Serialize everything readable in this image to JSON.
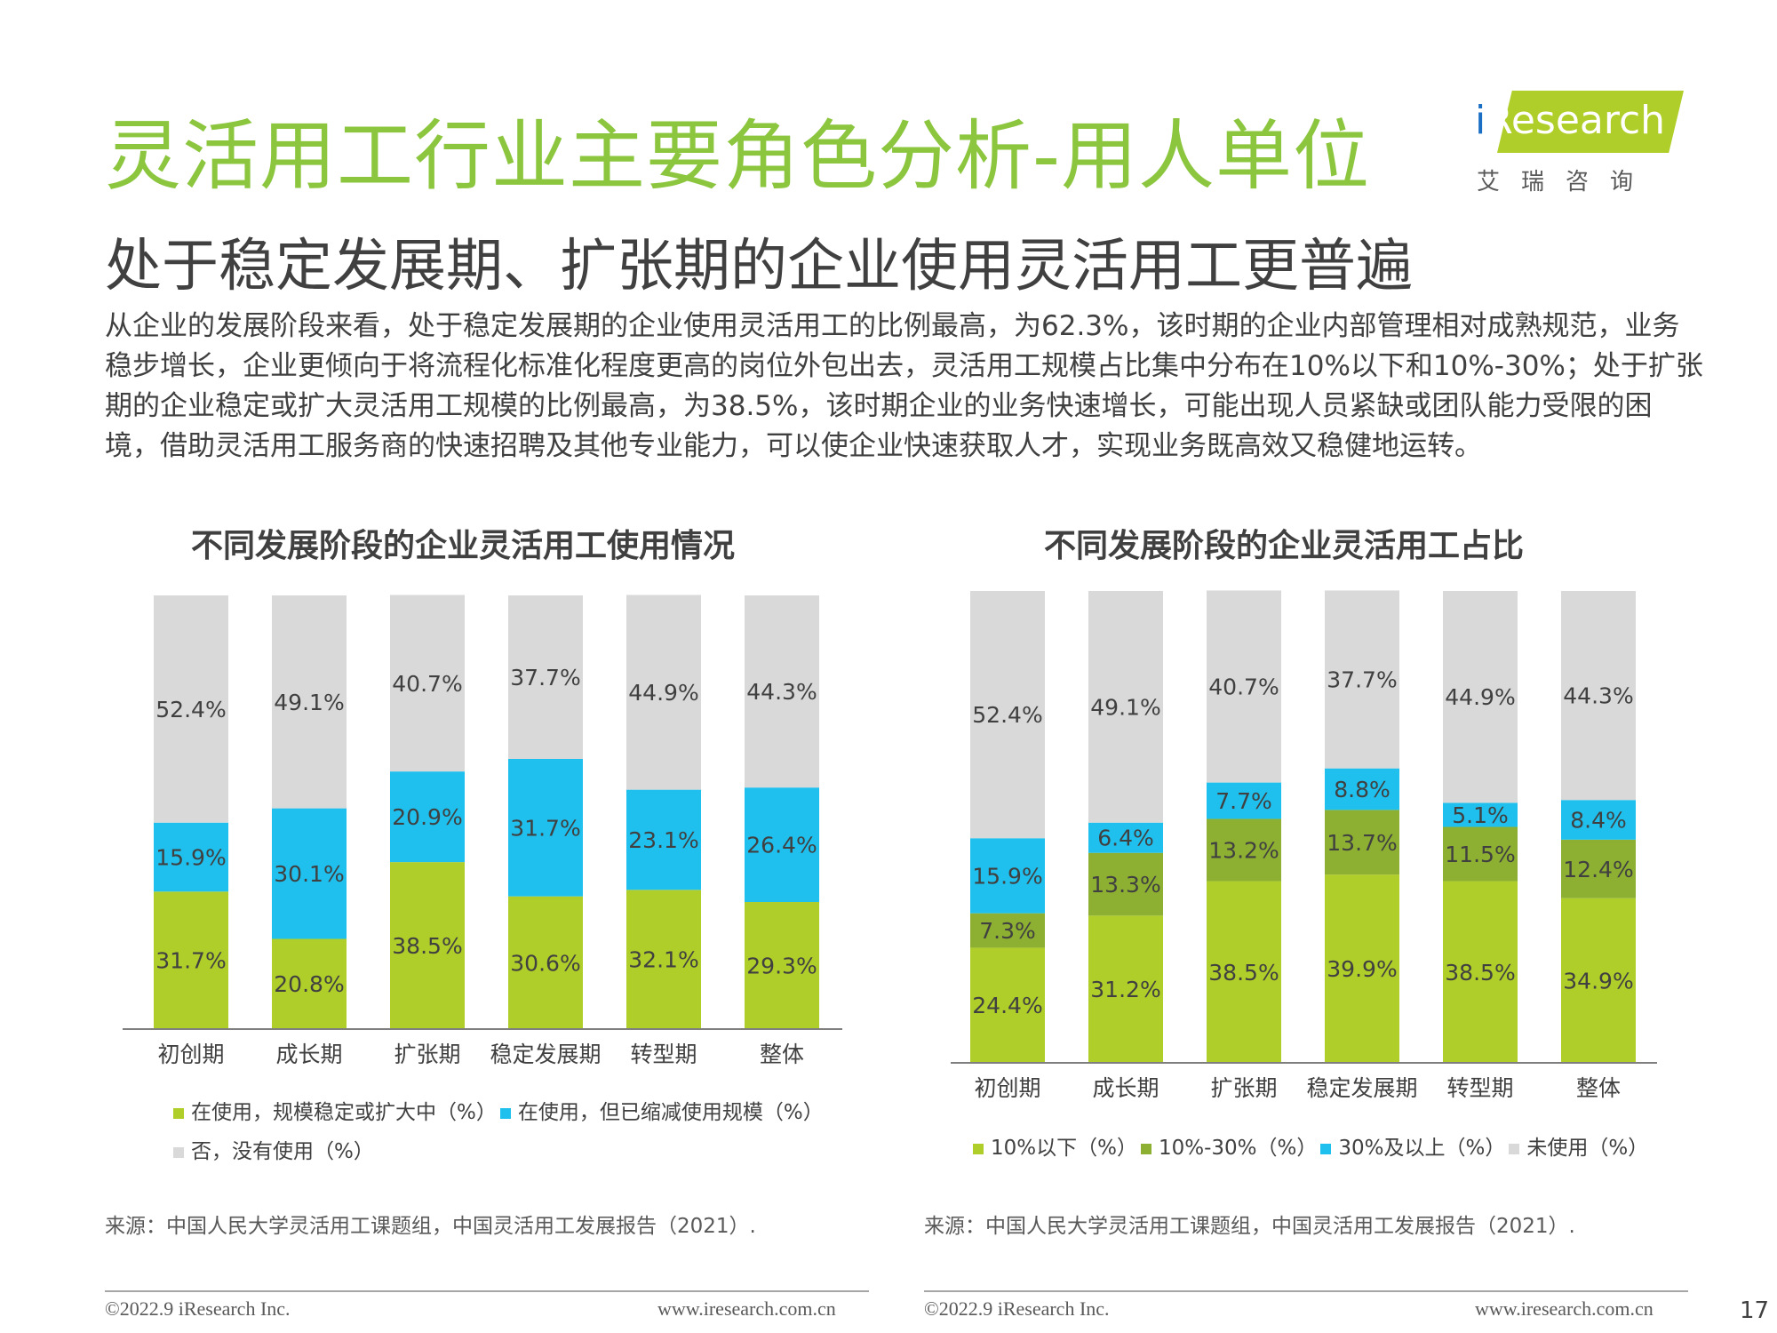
{
  "header": {
    "title": "灵活用工行业主要角色分析-用人单位",
    "subtitle": "处于稳定发展期、扩张期的企业使用灵活用工更普遍",
    "body": "从企业的发展阶段来看，处于稳定发展期的企业使用灵活用工的比例最高，为62.3%，该时期的企业内部管理相对成熟规范，业务稳步增长，企业更倾向于将流程化标准化程度更高的岗位外包出去，灵活用工规模占比集中分布在10%以下和10%-30%；处于扩张期的企业稳定或扩大灵活用工规模的比例最高，为38.5%，该时期企业的业务快速增长，可能出现人员紧缺或团队能力受限的困境，借助灵活用工服务商的快速招聘及其他专业能力，可以使企业快速获取人才，实现业务既高效又稳健地运转。"
  },
  "logo": {
    "i": "i",
    "word": "Research",
    "cn": "艾瑞咨询"
  },
  "colors": {
    "green": "#b0ce2a",
    "dark_green": "#8db032",
    "cyan": "#1fc0ee",
    "gray": "#d9d9d9",
    "title_green": "#8cc63f"
  },
  "chart_data": [
    {
      "type": "bar",
      "stacked": true,
      "title": "不同发展阶段的企业灵活用工使用情况",
      "categories": [
        "初创期",
        "成长期",
        "扩张期",
        "稳定发展期",
        "转型期",
        "整体"
      ],
      "series": [
        {
          "name": "在使用，规模稳定或扩大中（%）",
          "color": "#b0ce2a",
          "values": [
            31.7,
            20.8,
            38.5,
            30.6,
            32.1,
            29.3
          ]
        },
        {
          "name": "在使用，但已缩减使用规模（%）",
          "color": "#1fc0ee",
          "values": [
            15.9,
            30.1,
            20.9,
            31.7,
            23.1,
            26.4
          ]
        },
        {
          "name": "否，没有使用（%）",
          "color": "#d9d9d9",
          "values": [
            52.4,
            49.1,
            40.7,
            37.7,
            44.9,
            44.3
          ]
        }
      ],
      "ylim": [
        0,
        100
      ],
      "legend_position": "bottom",
      "source": "来源：中国人民大学灵活用工课题组，中国灵活用工发展报告（2021）."
    },
    {
      "type": "bar",
      "stacked": true,
      "title": "不同发展阶段的企业灵活用工占比",
      "categories": [
        "初创期",
        "成长期",
        "扩张期",
        "稳定发展期",
        "转型期",
        "整体"
      ],
      "series": [
        {
          "name": "10%以下（%）",
          "color": "#b0ce2a",
          "values": [
            24.4,
            31.2,
            38.5,
            39.9,
            38.5,
            34.9
          ]
        },
        {
          "name": "10%-30%（%）",
          "color": "#8db032",
          "values": [
            7.3,
            13.3,
            13.2,
            13.7,
            11.5,
            12.4
          ]
        },
        {
          "name": "30%及以上（%）",
          "color": "#1fc0ee",
          "values": [
            15.9,
            6.4,
            7.7,
            8.8,
            5.1,
            8.4
          ]
        },
        {
          "name": "未使用（%）",
          "color": "#d9d9d9",
          "values": [
            52.4,
            49.1,
            40.7,
            37.7,
            44.9,
            44.3
          ]
        }
      ],
      "ylim": [
        0,
        100
      ],
      "legend_position": "bottom",
      "source": "来源：中国人民大学灵活用工课题组，中国灵活用工发展报告（2021）."
    }
  ],
  "footer": {
    "left_copyright": "©2022.9 iResearch Inc.",
    "left_url": "www.iresearch.com.cn",
    "right_copyright": "©2022.9 iResearch Inc.",
    "right_url": "www.iresearch.com.cn",
    "page_number": "17"
  }
}
